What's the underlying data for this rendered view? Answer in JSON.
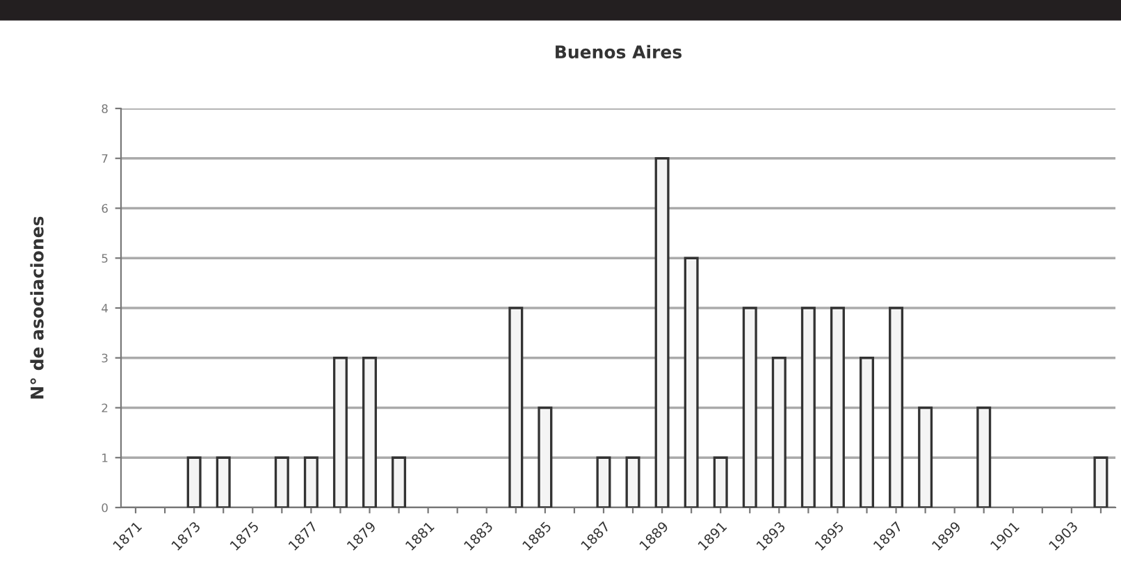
{
  "chart_data": {
    "type": "bar",
    "title": "Buenos Aires",
    "ylabel": "N° de asociaciones",
    "categories": [
      "1871",
      null,
      "1873",
      null,
      "1875",
      null,
      "1877",
      null,
      "1879",
      null,
      "1881",
      null,
      "1883",
      null,
      "1885",
      null,
      "1887",
      null,
      "1889",
      null,
      "1891",
      null,
      "1893",
      null,
      "1895",
      null,
      "1897",
      null,
      "1899",
      null,
      "1901",
      null,
      "1903",
      null
    ],
    "values": [
      0,
      0,
      1,
      1,
      0,
      1,
      1,
      3,
      3,
      1,
      0,
      0,
      0,
      4,
      2,
      0,
      1,
      1,
      7,
      5,
      1,
      4,
      3,
      4,
      4,
      3,
      4,
      2,
      0,
      2,
      0,
      0,
      0,
      1
    ],
    "color": "#f4f4f4",
    "ylim": [
      0,
      8
    ],
    "yticks": [
      0,
      1,
      2,
      3,
      4,
      5,
      6,
      7,
      8
    ],
    "grid": "y"
  }
}
